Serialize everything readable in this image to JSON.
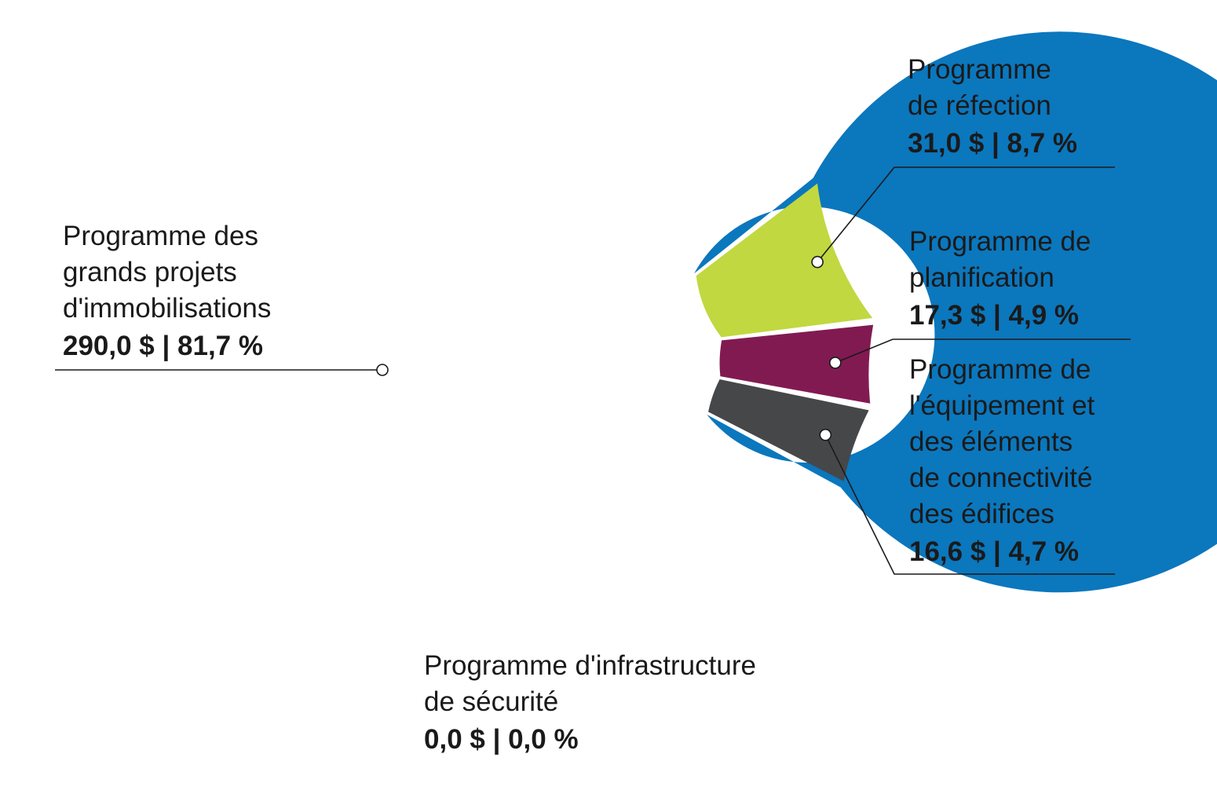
{
  "chart_data": {
    "type": "pie",
    "donut": true,
    "unit": "$",
    "slices": [
      {
        "label": [
          "Programme des",
          "grands projets",
          "d'immobilisations"
        ],
        "value": 290.0,
        "percent": 81.7,
        "value_text": "290,0 $ | 81,7 %",
        "color": "#0b77bd"
      },
      {
        "label": [
          "Programme",
          "de réfection"
        ],
        "value": 31.0,
        "percent": 8.7,
        "value_text": "31,0 $ | 8,7 %",
        "color": "#c1d840"
      },
      {
        "label": [
          "Programme de",
          "planification"
        ],
        "value": 17.3,
        "percent": 4.9,
        "value_text": "17,3 $ | 4,9 %",
        "color": "#821a52"
      },
      {
        "label": [
          "Programme de",
          "l'équipement et",
          "des éléments",
          "de connectivité",
          "des édifices"
        ],
        "value": 16.6,
        "percent": 4.7,
        "value_text": "16,6 $ | 4,7 %",
        "color": "#464749"
      },
      {
        "label": [
          "Programme d'infrastructure",
          "de sécurité"
        ],
        "value": 0.0,
        "percent": 0.0,
        "value_text": "0,0 $ | 0,0 %",
        "color": "#999999"
      }
    ]
  }
}
